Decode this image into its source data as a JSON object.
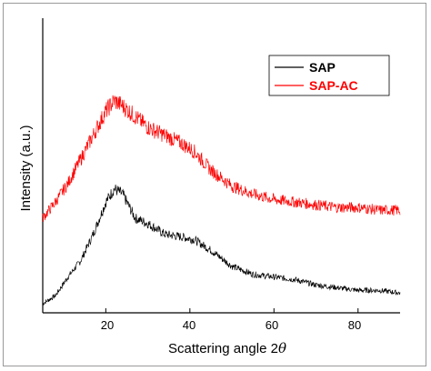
{
  "chart_data": {
    "type": "line",
    "xlabel": "Scattering angle 2",
    "xlabel_symbol": "θ",
    "ylabel": "Intensity (a.u.)",
    "xlim": [
      5,
      90
    ],
    "x_ticks": [
      20,
      40,
      60,
      80
    ],
    "y_ticks": false,
    "grid": false,
    "legend_position": "top-right",
    "x": [
      5,
      8,
      11,
      14,
      17,
      20,
      22,
      24,
      27,
      30,
      34,
      38,
      41,
      45,
      50,
      55,
      60,
      65,
      70,
      75,
      80,
      85,
      90
    ],
    "series": [
      {
        "name": "SAP",
        "color": "#000000",
        "values": [
          0.0,
          0.03,
          0.1,
          0.16,
          0.26,
          0.38,
          0.43,
          0.41,
          0.32,
          0.3,
          0.26,
          0.25,
          0.24,
          0.2,
          0.14,
          0.11,
          0.1,
          0.09,
          0.07,
          0.06,
          0.05,
          0.05,
          0.04
        ]
      },
      {
        "name": "SAP-AC",
        "color": "#ff0000",
        "values": [
          0.32,
          0.38,
          0.45,
          0.54,
          0.63,
          0.72,
          0.76,
          0.74,
          0.7,
          0.66,
          0.63,
          0.6,
          0.57,
          0.5,
          0.44,
          0.41,
          0.39,
          0.38,
          0.37,
          0.36,
          0.36,
          0.35,
          0.35
        ]
      }
    ]
  }
}
